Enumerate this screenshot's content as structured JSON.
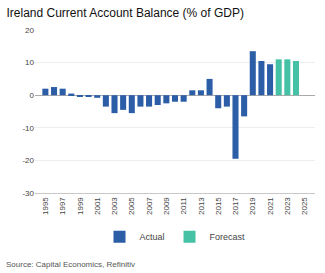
{
  "chart_data": {
    "type": "bar",
    "title": "Ireland Current Account Balance (% of GDP)",
    "annotations": [
      "Source: Capital Economics, Refinitiv"
    ],
    "x": [
      1995,
      1996,
      1997,
      1998,
      1999,
      2000,
      2001,
      2002,
      2003,
      2004,
      2005,
      2006,
      2007,
      2008,
      2009,
      2010,
      2011,
      2012,
      2013,
      2014,
      2015,
      2016,
      2017,
      2018,
      2019,
      2020,
      2021,
      2022,
      2023,
      2024,
      2025
    ],
    "series": [
      {
        "name": "Actual",
        "color": "#2b5ea7",
        "values": [
          2.0,
          2.5,
          2.0,
          0.5,
          -0.5,
          -0.5,
          -0.8,
          -3.5,
          -5.5,
          -4.5,
          -5.5,
          -3.5,
          -3.5,
          -3.0,
          -2.5,
          -2.0,
          -2.0,
          1.5,
          1.5,
          5.0,
          -4.0,
          -3.5,
          -19.5,
          -6.5,
          13.5,
          10.5,
          9.5,
          null,
          null,
          null,
          null
        ]
      },
      {
        "name": "Forecast",
        "color": "#45c2a5",
        "values": [
          null,
          null,
          null,
          null,
          null,
          null,
          null,
          null,
          null,
          null,
          null,
          null,
          null,
          null,
          null,
          null,
          null,
          null,
          null,
          null,
          null,
          null,
          null,
          null,
          null,
          null,
          null,
          11.0,
          11.0,
          10.5,
          0.0
        ]
      }
    ],
    "xlim": [
      1993.8,
      2026.2
    ],
    "xticks": [
      1995,
      1997,
      1999,
      2001,
      2003,
      2005,
      2007,
      2009,
      2011,
      2013,
      2015,
      2017,
      2019,
      2021,
      2023,
      2025
    ],
    "ylim": [
      -30,
      20
    ],
    "yticks": [
      -30,
      -20,
      -10,
      0,
      10,
      20
    ],
    "grid": true,
    "legend": "bottom"
  }
}
